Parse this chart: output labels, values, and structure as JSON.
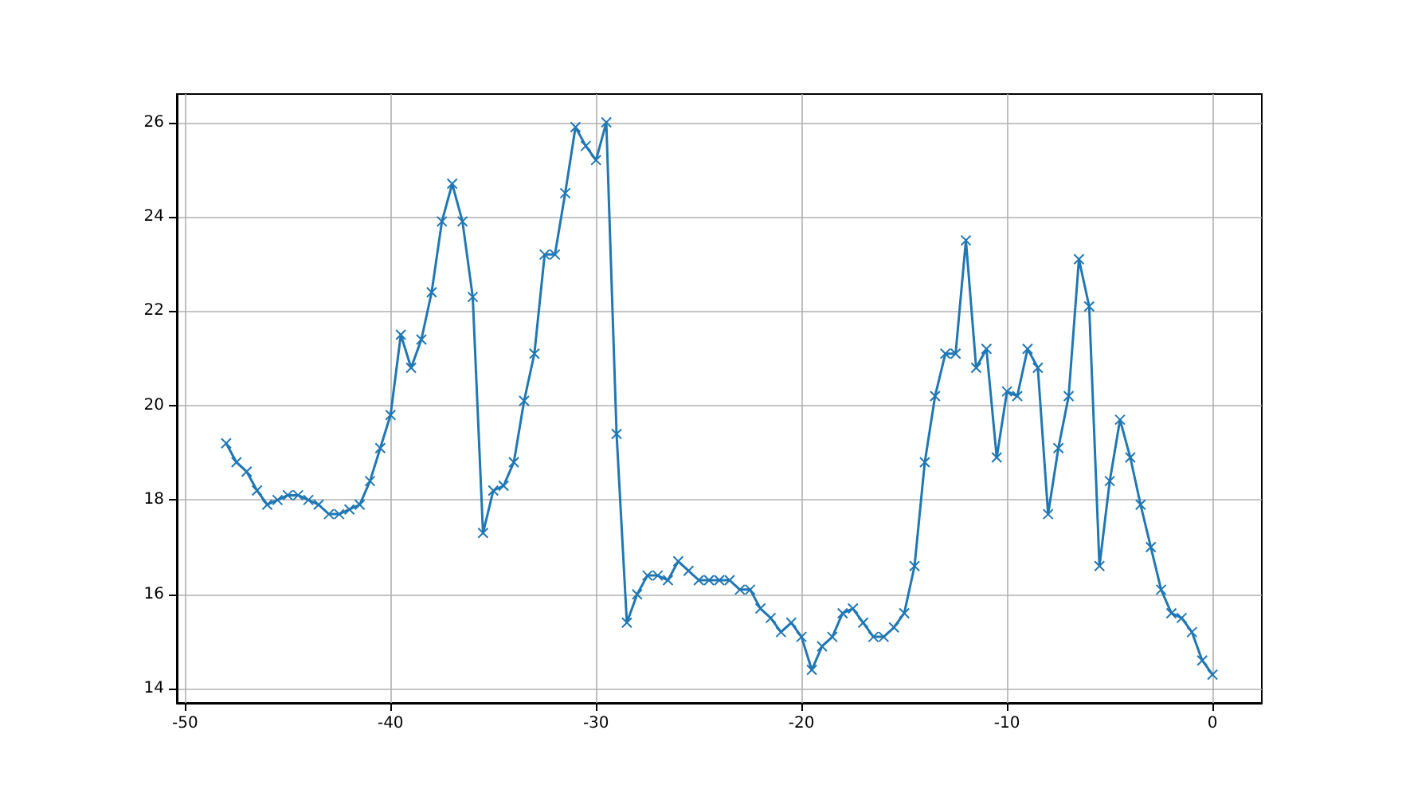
{
  "chart_data": {
    "type": "line",
    "marker": "cross",
    "grid": true,
    "line_style": "solid",
    "xlim": [
      -50.4,
      2.4
    ],
    "xticks": [
      -50,
      -40,
      -30,
      -20,
      -10,
      0
    ],
    "ylim": [
      13.7,
      26.6
    ],
    "yticks": [
      14,
      16,
      18,
      20,
      22,
      24,
      26
    ],
    "x": [
      -48,
      -47.5,
      -47,
      -46.5,
      -46,
      -45.5,
      -45,
      -44.5,
      -44,
      -43.5,
      -43,
      -42.5,
      -42,
      -41.5,
      -41,
      -40.5,
      -40,
      -39.5,
      -39,
      -38.5,
      -38,
      -37.5,
      -37,
      -36.5,
      -36,
      -35.5,
      -35,
      -34.5,
      -34,
      -33.5,
      -33,
      -32.5,
      -32,
      -31.5,
      -31,
      -30.5,
      -30,
      -29.5,
      -29,
      -28.5,
      -28,
      -27.5,
      -27,
      -26.5,
      -26,
      -25.5,
      -25,
      -24.5,
      -24,
      -23.5,
      -23,
      -22.5,
      -22,
      -21.5,
      -21,
      -20.5,
      -20,
      -19.5,
      -19,
      -18.5,
      -18,
      -17.5,
      -17,
      -16.5,
      -16,
      -15.5,
      -15,
      -14.5,
      -14,
      -13.5,
      -13,
      -12.5,
      -12,
      -11.5,
      -11,
      -10.5,
      -10,
      -9.5,
      -9,
      -8.5,
      -8,
      -7.5,
      -7,
      -6.5,
      -6,
      -5.5,
      -5,
      -4.5,
      -4,
      -3.5,
      -3,
      -2.5,
      -2,
      -1.5,
      -1,
      -0.5,
      0
    ],
    "series": [
      {
        "color": "#1f77b4",
        "values": [
          19.2,
          18.8,
          18.6,
          18.2,
          17.9,
          18.0,
          18.1,
          18.1,
          18.0,
          17.9,
          17.7,
          17.7,
          17.8,
          17.9,
          18.4,
          19.1,
          19.8,
          21.5,
          20.8,
          21.4,
          22.4,
          23.9,
          24.7,
          23.9,
          22.3,
          17.3,
          18.2,
          18.3,
          18.8,
          20.1,
          21.1,
          23.2,
          23.2,
          24.5,
          25.9,
          25.5,
          25.2,
          26.0,
          19.4,
          15.4,
          16.0,
          16.4,
          16.4,
          16.3,
          16.7,
          16.5,
          16.3,
          16.3,
          16.3,
          16.3,
          16.1,
          16.1,
          15.7,
          15.5,
          15.2,
          15.4,
          15.1,
          14.4,
          14.9,
          15.1,
          15.6,
          15.7,
          15.4,
          15.1,
          15.1,
          15.3,
          15.6,
          16.6,
          18.8,
          20.2,
          21.1,
          21.1,
          23.5,
          20.8,
          21.2,
          18.9,
          20.3,
          20.2,
          21.2,
          20.8,
          17.7,
          19.1,
          20.2,
          23.1,
          22.1,
          16.6,
          18.4,
          19.7,
          18.9,
          17.9,
          17.0,
          16.1,
          15.6,
          15.5,
          15.2,
          14.6,
          14.3
        ]
      }
    ]
  }
}
